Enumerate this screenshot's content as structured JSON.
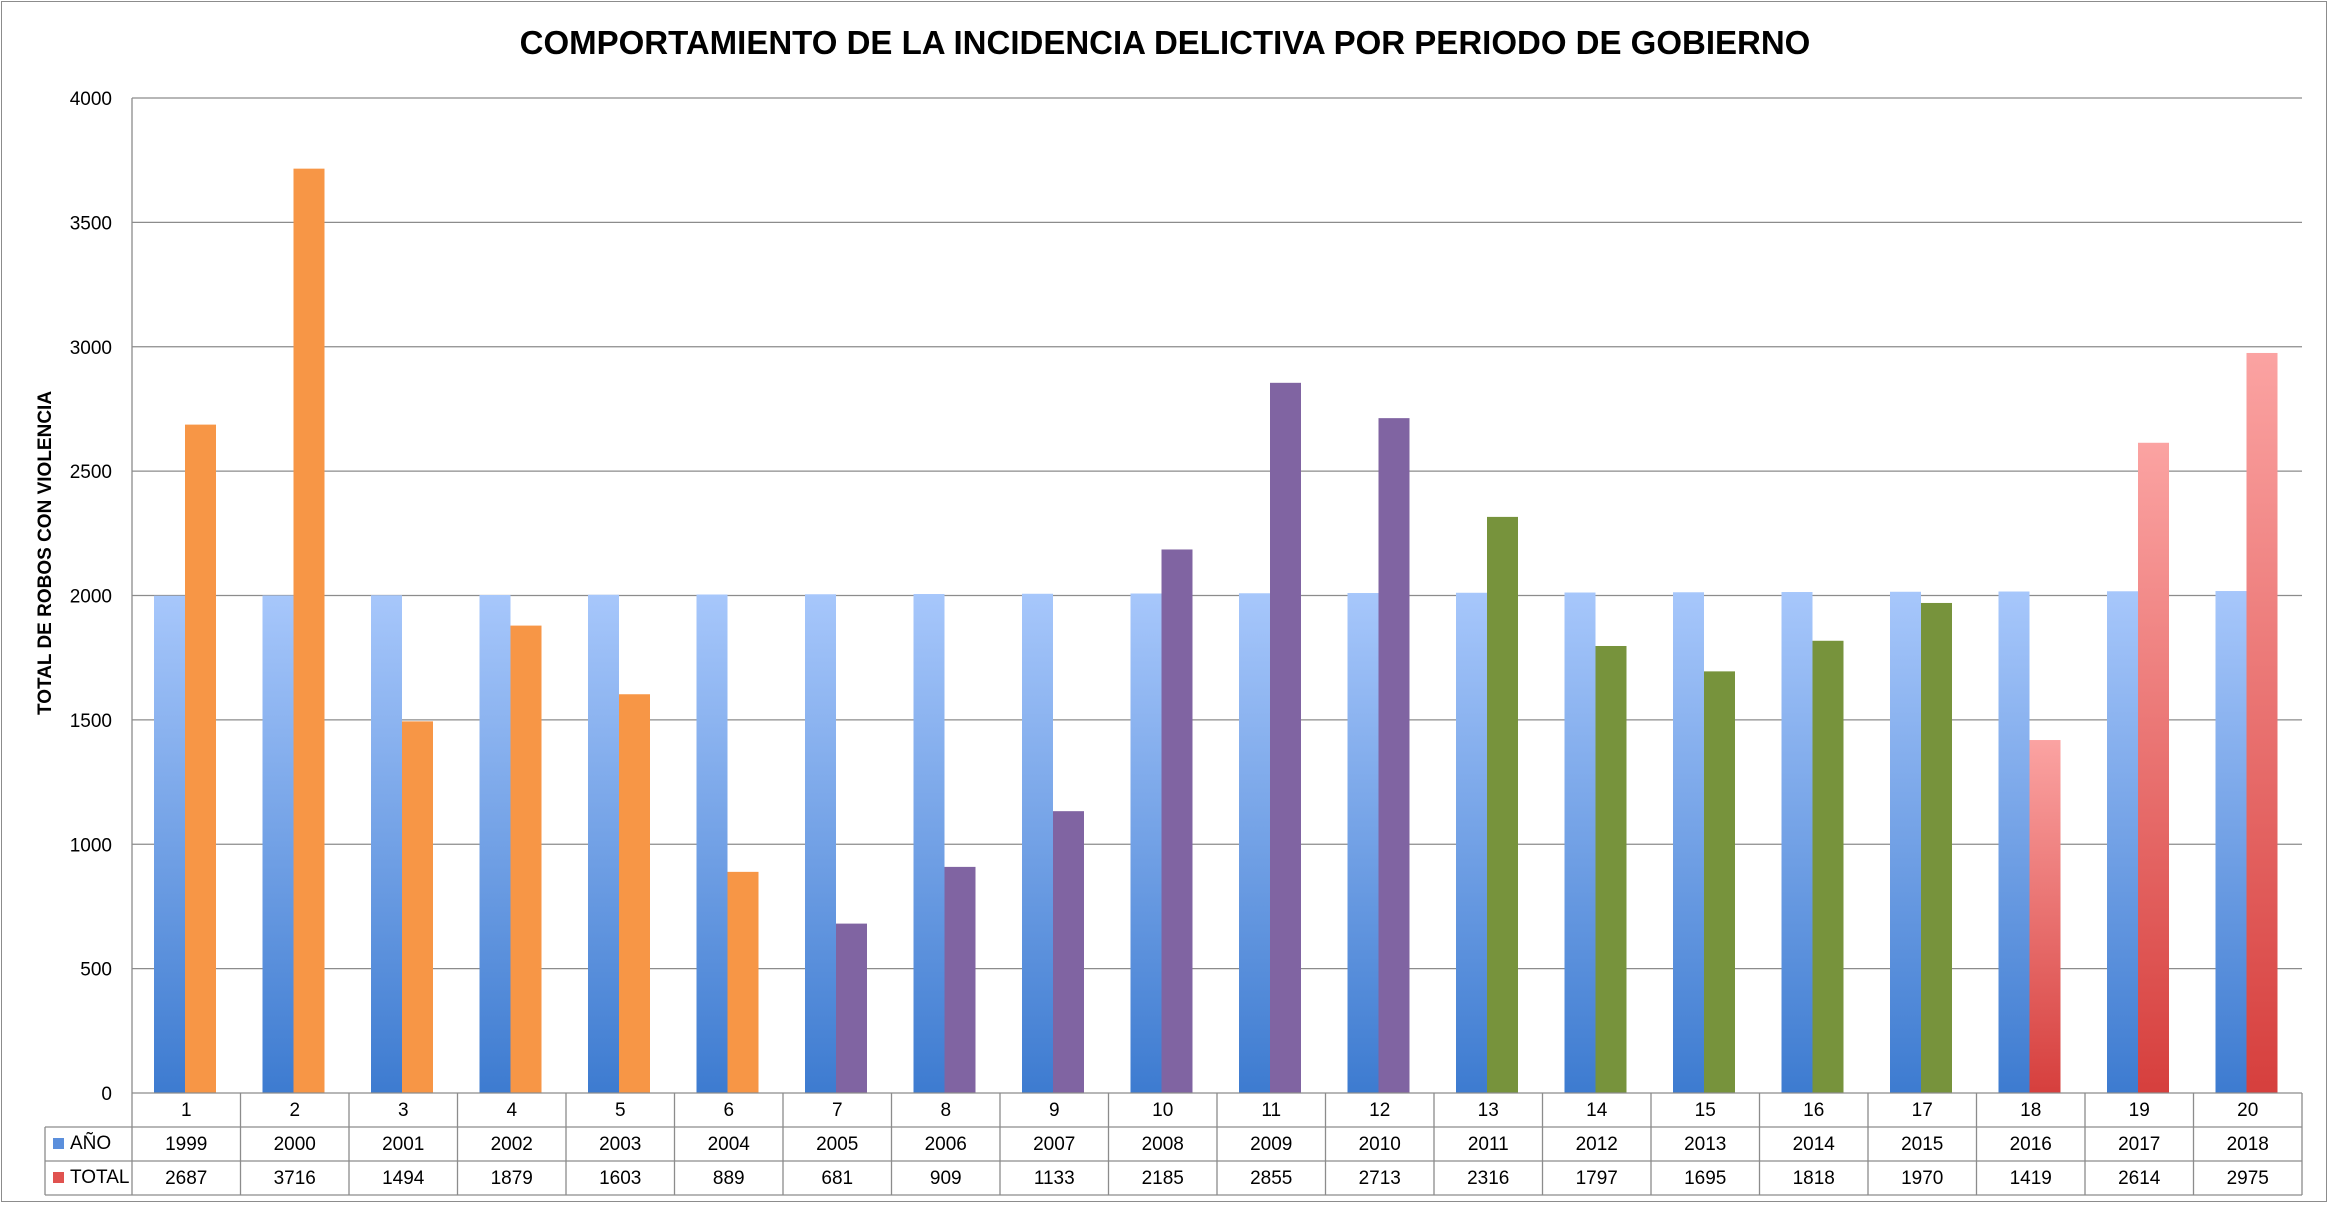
{
  "chart_data": {
    "type": "bar",
    "title": "COMPORTAMIENTO DE LA INCIDENCIA DELICTIVA POR PERIODO DE GOBIERNO",
    "xlabel": "",
    "ylabel": "TOTAL DE ROBOS CON VIOLENCIA",
    "ylim": [
      0,
      4000
    ],
    "yticks": [
      0,
      500,
      1000,
      1500,
      2000,
      2500,
      3000,
      3500,
      4000
    ],
    "categories": [
      "1",
      "2",
      "3",
      "4",
      "5",
      "6",
      "7",
      "8",
      "9",
      "10",
      "11",
      "12",
      "13",
      "14",
      "15",
      "16",
      "17",
      "18",
      "19",
      "20"
    ],
    "grid": true,
    "legend": "data-table-left",
    "series": [
      {
        "name": "AÑO",
        "color": "#5b8fdc",
        "values": [
          1999,
          2000,
          2001,
          2002,
          2003,
          2004,
          2005,
          2006,
          2007,
          2008,
          2009,
          2010,
          2011,
          2012,
          2013,
          2014,
          2015,
          2016,
          2017,
          2018
        ]
      },
      {
        "name": "TOTAL",
        "color": "#e0524f",
        "values": [
          2687,
          3716,
          1494,
          1879,
          1603,
          889,
          681,
          909,
          1133,
          2185,
          2855,
          2713,
          2316,
          1797,
          1695,
          1818,
          1970,
          1419,
          2614,
          2975
        ],
        "bar_colors": [
          "#f79646",
          "#f79646",
          "#f79646",
          "#f79646",
          "#f79646",
          "#f79646",
          "#8064a2",
          "#8064a2",
          "#8064a2",
          "#8064a2",
          "#8064a2",
          "#8064a2",
          "#77933c",
          "#77933c",
          "#77933c",
          "#77933c",
          "#77933c",
          "gradient-red",
          "gradient-red",
          "gradient-red"
        ]
      }
    ]
  }
}
